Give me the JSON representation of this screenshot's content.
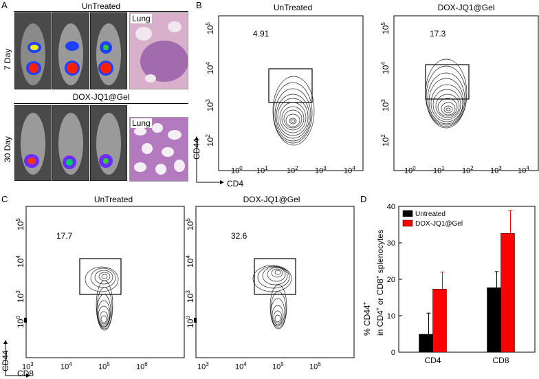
{
  "panel_letters": {
    "a": "A",
    "b": "B",
    "c": "C",
    "d": "D"
  },
  "panel_a": {
    "top_title": "UnTreated",
    "top_day": "7 Day",
    "top_lung": "Lung",
    "bottom_title": "DOX-JQ1@Gel",
    "bottom_day": "30 Day",
    "bottom_lung": "Lung"
  },
  "panel_b": {
    "left_title": "UnTreated",
    "right_title": "DOX-JQ1@Gel",
    "left_percent": "4.91",
    "right_percent": "17.3",
    "y_ticks": [
      "10",
      "10",
      "10",
      "10",
      "10"
    ],
    "y_exps": [
      "5",
      "4",
      "3",
      "2",
      "0"
    ],
    "x_ticks": [
      "10",
      "10",
      "10",
      "10",
      "10"
    ],
    "x_exps": [
      "0",
      "1",
      "2",
      "3",
      "4"
    ],
    "y_axis_label": "CD44",
    "x_axis_label": "CD4"
  },
  "panel_c": {
    "left_title": "UnTreated",
    "right_title": "DOX-JQ1@Gel",
    "left_percent": "17.7",
    "right_percent": "32.6",
    "y_exps": [
      "5",
      "4",
      "3",
      "0"
    ],
    "x_exps": [
      "3",
      "4",
      "5",
      "6"
    ],
    "y_axis_label": "CD44",
    "x_axis_label": "CD8"
  },
  "chart_data": {
    "type": "bar",
    "categories": [
      "CD4",
      "CD8"
    ],
    "series": [
      {
        "name": "Untreated",
        "values": [
          4.91,
          17.7
        ],
        "errors": [
          5.8,
          4.4
        ],
        "color": "#000000"
      },
      {
        "name": "DOX-JQ1@Gel",
        "values": [
          17.3,
          32.6
        ],
        "errors": [
          4.7,
          6.2
        ],
        "color": "#ff0000"
      }
    ],
    "ylabel_line1": "% CD44",
    "ylabel_line1_sup": "+",
    "ylabel_line2": "in CD4",
    "ylabel_line2_sup": "+",
    "ylabel_line2b": " or CD8",
    "ylabel_line2b_sup": "+",
    "ylabel_line2c": " splenocytes",
    "ylim": [
      0,
      40
    ],
    "y_ticks": [
      0,
      10,
      20,
      30,
      40
    ],
    "legend": "top-left"
  }
}
